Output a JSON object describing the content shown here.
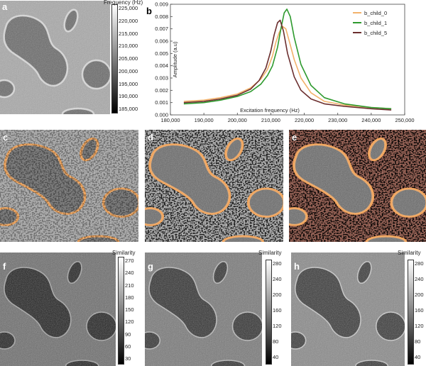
{
  "panels": {
    "a": {
      "label": "a",
      "colorbar": {
        "title": "Frequency (Hz)",
        "ticks": [
          "225,000",
          "220,000",
          "215,000",
          "210,000",
          "205,000",
          "200,000",
          "195,000",
          "190,000",
          "185,000"
        ]
      }
    },
    "b": {
      "label": "b"
    },
    "c": {
      "label": "c"
    },
    "d": {
      "label": "d"
    },
    "e": {
      "label": "e"
    },
    "f": {
      "label": "f",
      "colorbar": {
        "title": "Similarity",
        "ticks": [
          "270",
          "240",
          "210",
          "180",
          "150",
          "120",
          "90",
          "60",
          "30"
        ]
      }
    },
    "g": {
      "label": "g",
      "colorbar": {
        "title": "Similarity",
        "ticks": [
          "280",
          "240",
          "200",
          "160",
          "120",
          "80",
          "40"
        ]
      }
    },
    "h": {
      "label": "h",
      "colorbar": {
        "title": "Similarity",
        "ticks": [
          "280",
          "240",
          "200",
          "160",
          "120",
          "80",
          "40"
        ]
      }
    }
  },
  "colors": {
    "b_child_0": "#f2b26b",
    "b_child_1": "#2e9a2e",
    "b_child_5": "#6b2e2e",
    "overlay_orange": "#f5a65b",
    "overlay_green": "#2ea52e",
    "overlay_brown": "#8c4a3a"
  },
  "chart_data": {
    "type": "line",
    "title": "",
    "xlabel": "Excitation frequency (Hz)",
    "ylabel": "Amplitude (a.u)",
    "xlim": [
      180000,
      250000
    ],
    "ylim": [
      0,
      0.009
    ],
    "xticks": [
      "180,000",
      "190,000",
      "200,000",
      "210,000",
      "220,000",
      "230,000",
      "240,000",
      "250,000"
    ],
    "yticks": [
      "0.000",
      "0.001",
      "0.002",
      "0.003",
      "0.004",
      "0.005",
      "0.006",
      "0.007",
      "0.008",
      "0.009"
    ],
    "legend_position": "top-right",
    "series": [
      {
        "name": "b_child_0",
        "x": [
          184000,
          190000,
          195000,
          200000,
          204000,
          207000,
          209000,
          210500,
          211500,
          212500,
          213500,
          214500,
          215500,
          217000,
          219000,
          222000,
          226000,
          232000,
          240000,
          246000
        ],
        "y": [
          0.0011,
          0.0012,
          0.0014,
          0.0017,
          0.0022,
          0.0029,
          0.0037,
          0.0048,
          0.0059,
          0.0067,
          0.0072,
          0.007,
          0.006,
          0.0045,
          0.003,
          0.0018,
          0.0011,
          0.0008,
          0.0006,
          0.0005
        ]
      },
      {
        "name": "b_child_1",
        "x": [
          184000,
          190000,
          195000,
          200000,
          204000,
          207000,
          209000,
          210500,
          212000,
          213000,
          214000,
          214800,
          215800,
          217000,
          219000,
          222000,
          226000,
          232000,
          240000,
          246000
        ],
        "y": [
          0.0009,
          0.001,
          0.0012,
          0.0015,
          0.0019,
          0.0025,
          0.0032,
          0.004,
          0.0055,
          0.007,
          0.0083,
          0.0086,
          0.008,
          0.0063,
          0.0041,
          0.0024,
          0.0014,
          0.0009,
          0.0006,
          0.0005
        ]
      },
      {
        "name": "b_child_5",
        "x": [
          184000,
          190000,
          195000,
          200000,
          204000,
          206500,
          208500,
          210000,
          211000,
          212000,
          212800,
          213800,
          215000,
          217000,
          219000,
          222000,
          226000,
          232000,
          240000,
          246000
        ],
        "y": [
          0.001,
          0.0011,
          0.0013,
          0.0016,
          0.0021,
          0.0028,
          0.0038,
          0.0052,
          0.0065,
          0.0075,
          0.0077,
          0.0068,
          0.005,
          0.0031,
          0.002,
          0.0013,
          0.0009,
          0.0007,
          0.0005,
          0.0004
        ]
      }
    ]
  }
}
